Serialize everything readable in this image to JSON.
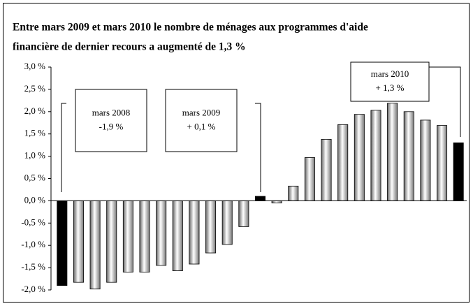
{
  "chart_data": {
    "type": "bar",
    "title_lines": [
      "Entre mars 2009  et mars  2010 le  nombre de ménages aux programmes d'aide",
      "financière de dernier recours a augmenté de 1,3 %"
    ],
    "categories": [
      null,
      null,
      null,
      null,
      null,
      null,
      null,
      null,
      null,
      null,
      null,
      null,
      null,
      null,
      null,
      null,
      null,
      null,
      null,
      null,
      null,
      null,
      null,
      null,
      null
    ],
    "values": [
      -1.9,
      -1.83,
      -1.98,
      -1.83,
      -1.6,
      -1.6,
      -1.45,
      -1.57,
      -1.42,
      -1.17,
      -0.98,
      -0.58,
      0.1,
      -0.05,
      0.33,
      0.97,
      1.38,
      1.71,
      1.94,
      2.03,
      2.19,
      2.0,
      1.81,
      1.69,
      1.3
    ],
    "colors": [
      "#000000",
      "#b4b4b4",
      "#b4b4b4",
      "#b4b4b4",
      "#b4b4b4",
      "#b4b4b4",
      "#b4b4b4",
      "#b4b4b4",
      "#b4b4b4",
      "#b4b4b4",
      "#b4b4b4",
      "#b4b4b4",
      "#000000",
      "#b4b4b4",
      "#b4b4b4",
      "#b4b4b4",
      "#b4b4b4",
      "#b4b4b4",
      "#b4b4b4",
      "#b4b4b4",
      "#b4b4b4",
      "#b4b4b4",
      "#b4b4b4",
      "#b4b4b4",
      "#000000"
    ],
    "ylim": [
      -2.0,
      3.0
    ],
    "yticks": [
      {
        "value": 3.0,
        "label": "3,0 %"
      },
      {
        "value": 2.5,
        "label": "2,5 %"
      },
      {
        "value": 2.0,
        "label": "2,0 %"
      },
      {
        "value": 1.5,
        "label": "1,5 %"
      },
      {
        "value": 1.0,
        "label": "1,0 %"
      },
      {
        "value": 0.5,
        "label": "0,5 %"
      },
      {
        "value": 0.0,
        "label": "0,0 %"
      },
      {
        "value": -0.5,
        "label": "-0,5 %"
      },
      {
        "value": -1.0,
        "label": "-1,0 %"
      },
      {
        "value": -1.5,
        "label": "-1,5 %"
      },
      {
        "value": -2.0,
        "label": "-2,0 %"
      }
    ],
    "annotations": [
      {
        "lines": [
          "mars 2008",
          "-1,9 %"
        ]
      },
      {
        "lines": [
          "mars 2009",
          "+ 0,1 %"
        ]
      },
      {
        "lines": [
          "mars 2010",
          "+ 1,3 %"
        ]
      }
    ]
  }
}
